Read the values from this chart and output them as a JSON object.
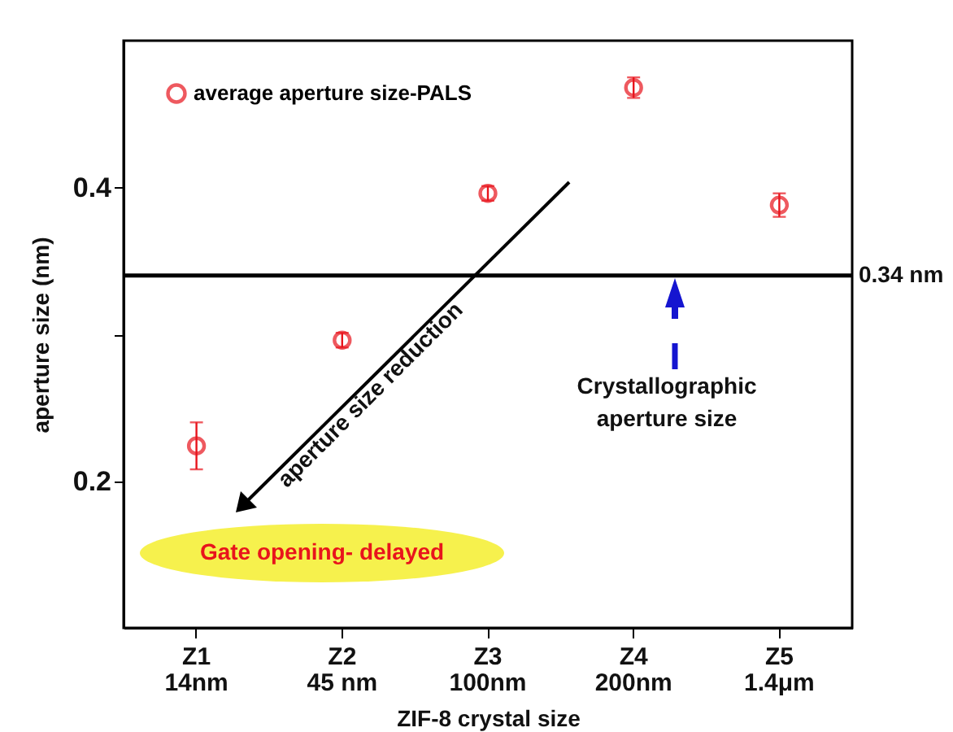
{
  "chart_data": {
    "type": "scatter",
    "xlabel": "ZIF-8 crystal size",
    "ylabel": "aperture size (nm)",
    "categories": [
      "Z1\n14nm",
      "Z2\n45 nm",
      "Z3\n100nm",
      "Z4\n200nm",
      "Z5\n1.4μm"
    ],
    "series": [
      {
        "name": "average aperture size-PALS",
        "color": "#e8141c",
        "values": [
          0.224,
          0.296,
          0.396,
          0.468,
          0.388
        ],
        "errors": [
          [
            0.208,
            0.24
          ],
          0.005,
          0.005,
          0.007,
          0.008
        ]
      }
    ],
    "ylim": [
      0.1,
      0.5
    ],
    "yticks": [
      0.2,
      {
        "value": 0.3,
        "label": null
      },
      0.4
    ],
    "ref_lines": [
      {
        "axis": "y",
        "value": 0.34,
        "label": "0.34 nm",
        "color": "#000000"
      }
    ],
    "annotations": [
      "aperture size reduction",
      "Crystallographic aperture size",
      "Gate opening- delayed"
    ],
    "marker": "circle",
    "legend": "top left",
    "grid": false
  }
}
